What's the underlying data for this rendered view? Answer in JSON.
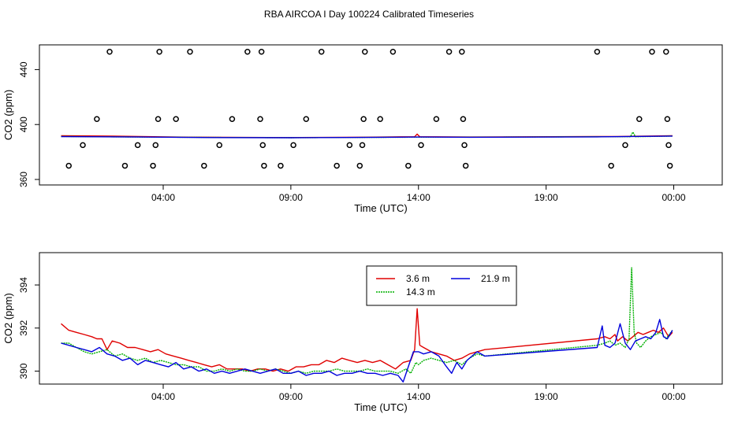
{
  "title": "RBA AIRCOA I  Day 100224  Calibrated Timeseries",
  "chart_data": [
    {
      "type": "scatter",
      "xlabel": "Time (UTC)",
      "ylabel": "CO2 (ppm)",
      "xlim_hours": [
        -0.85,
        25.9
      ],
      "ylim": [
        356,
        458
      ],
      "xticks": [
        {
          "value": 4,
          "label": "04:00"
        },
        {
          "value": 9,
          "label": "09:00"
        },
        {
          "value": 14,
          "label": "14:00"
        },
        {
          "value": 19,
          "label": "19:00"
        },
        {
          "value": 24,
          "label": "00:00"
        }
      ],
      "yticks": [
        {
          "value": 360,
          "label": "360"
        },
        {
          "value": 400,
          "label": "400"
        },
        {
          "value": 440,
          "label": "440"
        }
      ],
      "points": [
        {
          "x": 0.3,
          "y": 370
        },
        {
          "x": 0.85,
          "y": 385
        },
        {
          "x": 1.4,
          "y": 404
        },
        {
          "x": 1.9,
          "y": 453
        },
        {
          "x": 2.5,
          "y": 370
        },
        {
          "x": 3.0,
          "y": 385
        },
        {
          "x": 3.6,
          "y": 370
        },
        {
          "x": 3.7,
          "y": 385
        },
        {
          "x": 3.8,
          "y": 404
        },
        {
          "x": 3.85,
          "y": 453
        },
        {
          "x": 4.5,
          "y": 404
        },
        {
          "x": 5.05,
          "y": 453
        },
        {
          "x": 5.6,
          "y": 370
        },
        {
          "x": 6.2,
          "y": 385
        },
        {
          "x": 6.7,
          "y": 404
        },
        {
          "x": 7.3,
          "y": 453
        },
        {
          "x": 7.8,
          "y": 404
        },
        {
          "x": 7.85,
          "y": 453
        },
        {
          "x": 7.9,
          "y": 385
        },
        {
          "x": 7.95,
          "y": 370
        },
        {
          "x": 8.6,
          "y": 370
        },
        {
          "x": 9.1,
          "y": 385
        },
        {
          "x": 9.6,
          "y": 404
        },
        {
          "x": 10.2,
          "y": 453
        },
        {
          "x": 10.8,
          "y": 370
        },
        {
          "x": 11.3,
          "y": 385
        },
        {
          "x": 11.7,
          "y": 370
        },
        {
          "x": 11.8,
          "y": 385
        },
        {
          "x": 11.85,
          "y": 404
        },
        {
          "x": 11.9,
          "y": 453
        },
        {
          "x": 12.5,
          "y": 404
        },
        {
          "x": 13.0,
          "y": 453
        },
        {
          "x": 13.6,
          "y": 370
        },
        {
          "x": 14.1,
          "y": 385
        },
        {
          "x": 14.7,
          "y": 404
        },
        {
          "x": 15.2,
          "y": 453
        },
        {
          "x": 15.7,
          "y": 453
        },
        {
          "x": 15.75,
          "y": 404
        },
        {
          "x": 15.8,
          "y": 385
        },
        {
          "x": 15.85,
          "y": 370
        },
        {
          "x": 21.0,
          "y": 453
        },
        {
          "x": 21.55,
          "y": 370
        },
        {
          "x": 22.1,
          "y": 385
        },
        {
          "x": 22.65,
          "y": 404
        },
        {
          "x": 23.15,
          "y": 453
        },
        {
          "x": 23.7,
          "y": 453
        },
        {
          "x": 23.75,
          "y": 404
        },
        {
          "x": 23.8,
          "y": 385
        },
        {
          "x": 23.85,
          "y": 370
        }
      ],
      "series": [
        {
          "name": "3.6 m",
          "color": "#e00000",
          "x": [
            0,
            2,
            5,
            9,
            12,
            13.85,
            13.95,
            14.05,
            16,
            21,
            21.8,
            23.95
          ],
          "values": [
            391.9,
            391.6,
            390.8,
            390.5,
            390.8,
            391.1,
            393.0,
            391.1,
            390.9,
            391.3,
            391.3,
            391.8
          ]
        },
        {
          "name": "14.3 m",
          "color": "#00b000",
          "x": [
            0,
            3,
            6,
            9,
            12,
            14,
            16,
            21,
            22.3,
            22.4,
            22.5,
            23.95
          ],
          "values": [
            391.3,
            390.9,
            390.6,
            390.4,
            390.6,
            390.8,
            390.8,
            391.1,
            391.1,
            394.5,
            391.1,
            391.6
          ]
        },
        {
          "name": "21.9 m",
          "color": "#0000dd",
          "x": [
            0,
            3,
            6,
            9,
            12,
            14,
            16,
            21,
            23.95
          ],
          "values": [
            391.2,
            390.9,
            390.5,
            390.4,
            390.6,
            390.9,
            390.7,
            391.0,
            391.6
          ]
        }
      ]
    },
    {
      "type": "line",
      "xlabel": "Time (UTC)",
      "ylabel": "CO2 (ppm)",
      "xlim_hours": [
        -0.85,
        25.9
      ],
      "ylim": [
        389.4,
        395.5
      ],
      "xticks": [
        {
          "value": 4,
          "label": "04:00"
        },
        {
          "value": 9,
          "label": "09:00"
        },
        {
          "value": 14,
          "label": "14:00"
        },
        {
          "value": 19,
          "label": "19:00"
        },
        {
          "value": 24,
          "label": "00:00"
        }
      ],
      "yticks": [
        {
          "value": 390,
          "label": "390"
        },
        {
          "value": 392,
          "label": "392"
        },
        {
          "value": 394,
          "label": "394"
        }
      ],
      "legend": {
        "placement": "top-center"
      },
      "series": [
        {
          "name": "3.6 m",
          "color": "#e00000",
          "x": [
            0,
            0.3,
            0.6,
            0.9,
            1.2,
            1.4,
            1.6,
            1.8,
            2.0,
            2.3,
            2.6,
            2.9,
            3.2,
            3.5,
            3.8,
            4.1,
            4.4,
            4.7,
            5.0,
            5.3,
            5.6,
            5.9,
            6.2,
            6.5,
            6.8,
            7.1,
            7.4,
            7.7,
            8.0,
            8.3,
            8.6,
            8.9,
            9.2,
            9.5,
            9.8,
            10.1,
            10.4,
            10.7,
            11.0,
            11.3,
            11.6,
            11.9,
            12.2,
            12.5,
            12.8,
            13.1,
            13.4,
            13.7,
            13.85,
            13.95,
            14.05,
            14.2,
            14.5,
            14.8,
            15.1,
            15.4,
            15.7,
            16.0,
            16.3,
            16.6,
            21.0,
            21.3,
            21.5,
            21.7,
            21.8,
            22.0,
            22.2,
            22.4,
            22.6,
            22.8,
            23.0,
            23.2,
            23.4,
            23.6,
            23.8,
            23.95
          ],
          "values": [
            392.2,
            391.9,
            391.8,
            391.7,
            391.6,
            391.5,
            391.5,
            391.0,
            391.4,
            391.3,
            391.1,
            391.1,
            391.0,
            390.9,
            391.0,
            390.8,
            390.7,
            390.6,
            390.5,
            390.4,
            390.3,
            390.2,
            390.3,
            390.1,
            390.1,
            390.1,
            390.0,
            390.1,
            390.1,
            390.0,
            390.1,
            390.0,
            390.2,
            390.2,
            390.3,
            390.3,
            390.5,
            390.4,
            390.6,
            390.5,
            390.4,
            390.5,
            390.4,
            390.5,
            390.3,
            390.1,
            390.4,
            390.5,
            391.0,
            392.9,
            391.2,
            391.1,
            390.9,
            390.8,
            390.7,
            390.5,
            390.6,
            390.8,
            390.9,
            391.0,
            391.5,
            391.6,
            391.5,
            391.7,
            391.4,
            391.6,
            391.4,
            391.6,
            391.8,
            391.7,
            391.8,
            391.9,
            391.8,
            392.0,
            391.6,
            391.8
          ]
        },
        {
          "name": "14.3 m",
          "color": "#00b000",
          "x": [
            0,
            0.3,
            0.6,
            0.9,
            1.2,
            1.5,
            1.8,
            2.1,
            2.4,
            2.7,
            3.0,
            3.3,
            3.6,
            3.9,
            4.2,
            4.5,
            4.8,
            5.1,
            5.4,
            5.7,
            6.0,
            6.3,
            6.6,
            6.9,
            7.2,
            7.5,
            7.8,
            8.1,
            8.4,
            8.7,
            9.0,
            9.3,
            9.6,
            9.9,
            10.2,
            10.5,
            10.8,
            11.1,
            11.4,
            11.7,
            12.0,
            12.3,
            12.6,
            12.9,
            13.2,
            13.5,
            13.7,
            13.9,
            14.0,
            14.2,
            14.5,
            14.8,
            15.1,
            15.4,
            15.7,
            16.0,
            16.3,
            16.6,
            21.0,
            21.3,
            21.5,
            21.7,
            21.9,
            22.1,
            22.25,
            22.35,
            22.45,
            22.55,
            22.7,
            22.9,
            23.1,
            23.3,
            23.5,
            23.7,
            23.95
          ],
          "values": [
            391.3,
            391.3,
            391.1,
            390.9,
            390.8,
            390.9,
            391.0,
            390.7,
            390.8,
            390.6,
            390.5,
            390.6,
            390.4,
            390.5,
            390.4,
            390.3,
            390.3,
            390.2,
            390.2,
            390.0,
            390.0,
            390.1,
            390.0,
            390.1,
            390.0,
            390.0,
            390.1,
            390.0,
            390.1,
            390.0,
            389.9,
            390.0,
            389.9,
            390.0,
            390.0,
            390.0,
            390.1,
            390.0,
            390.0,
            390.0,
            390.1,
            390.0,
            390.0,
            390.0,
            389.9,
            390.1,
            389.9,
            390.4,
            390.3,
            390.5,
            390.6,
            390.5,
            390.4,
            390.5,
            390.3,
            390.6,
            390.8,
            390.7,
            391.2,
            391.3,
            391.4,
            391.2,
            391.3,
            391.1,
            391.5,
            394.8,
            391.8,
            391.3,
            391.1,
            391.4,
            391.6,
            391.7,
            391.8,
            391.5,
            391.9
          ]
        },
        {
          "name": "21.9 m",
          "color": "#0000dd",
          "x": [
            0,
            0.3,
            0.6,
            0.9,
            1.2,
            1.5,
            1.8,
            2.1,
            2.4,
            2.7,
            3.0,
            3.3,
            3.6,
            3.9,
            4.2,
            4.5,
            4.8,
            5.1,
            5.4,
            5.7,
            6.0,
            6.3,
            6.6,
            6.9,
            7.2,
            7.5,
            7.8,
            8.1,
            8.4,
            8.7,
            9.0,
            9.3,
            9.6,
            9.9,
            10.2,
            10.5,
            10.8,
            11.1,
            11.4,
            11.7,
            12.0,
            12.3,
            12.6,
            12.9,
            13.2,
            13.4,
            13.6,
            13.8,
            14.0,
            14.2,
            14.5,
            14.8,
            15.1,
            15.3,
            15.5,
            15.7,
            15.9,
            16.1,
            16.3,
            16.6,
            21.0,
            21.2,
            21.3,
            21.5,
            21.7,
            21.9,
            22.1,
            22.3,
            22.5,
            22.7,
            22.9,
            23.1,
            23.3,
            23.45,
            23.6,
            23.75,
            23.95
          ],
          "values": [
            391.3,
            391.2,
            391.1,
            391.0,
            390.9,
            391.1,
            390.8,
            390.7,
            390.5,
            390.6,
            390.3,
            390.5,
            390.4,
            390.3,
            390.2,
            390.4,
            390.1,
            390.2,
            390.0,
            390.1,
            389.9,
            390.0,
            389.9,
            390.0,
            390.1,
            390.0,
            389.9,
            390.0,
            390.1,
            389.9,
            389.9,
            390.0,
            389.8,
            389.9,
            389.9,
            390.0,
            389.8,
            389.9,
            389.9,
            390.0,
            389.9,
            389.9,
            389.8,
            389.9,
            389.8,
            389.5,
            390.2,
            390.9,
            390.9,
            390.8,
            390.9,
            390.7,
            390.2,
            389.9,
            390.4,
            390.1,
            390.5,
            390.7,
            390.9,
            390.7,
            391.1,
            392.1,
            391.2,
            391.1,
            391.3,
            392.2,
            391.3,
            391.0,
            391.4,
            391.5,
            391.6,
            391.5,
            391.8,
            392.4,
            391.6,
            391.5,
            391.9
          ]
        }
      ]
    }
  ]
}
